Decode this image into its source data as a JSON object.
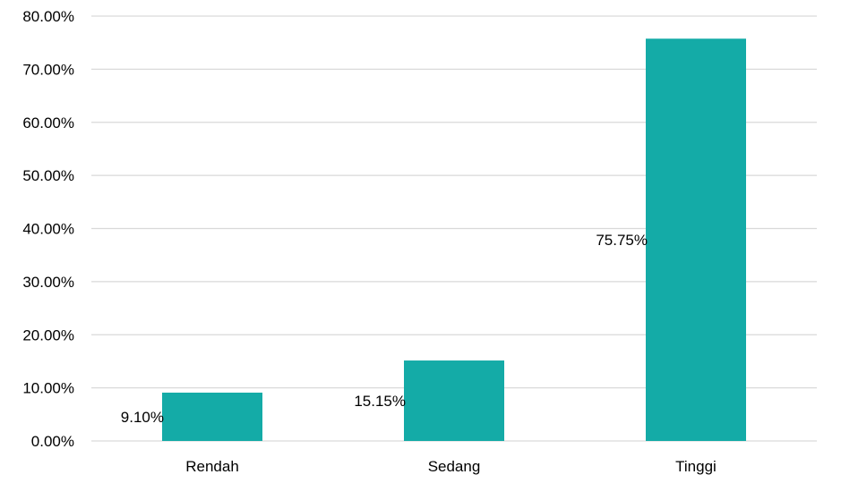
{
  "chart_data": {
    "type": "bar",
    "categories": [
      "Rendah",
      "Sedang",
      "Tinggi"
    ],
    "values": [
      9.1,
      15.15,
      75.75
    ],
    "data_labels": [
      "9.10%",
      "15.15%",
      "75.75%"
    ],
    "y_ticks": [
      "0.00%",
      "10.00%",
      "20.00%",
      "30.00%",
      "40.00%",
      "50.00%",
      "60.00%",
      "70.00%",
      "80.00%"
    ],
    "ylim": [
      0,
      80
    ],
    "y_unit": "%",
    "title": "",
    "xlabel": "",
    "ylabel": "",
    "grid": true,
    "legend": "none",
    "colors": {
      "bar": "#14ABA7",
      "grid": "#D9D9D9",
      "text": "#000000"
    }
  }
}
